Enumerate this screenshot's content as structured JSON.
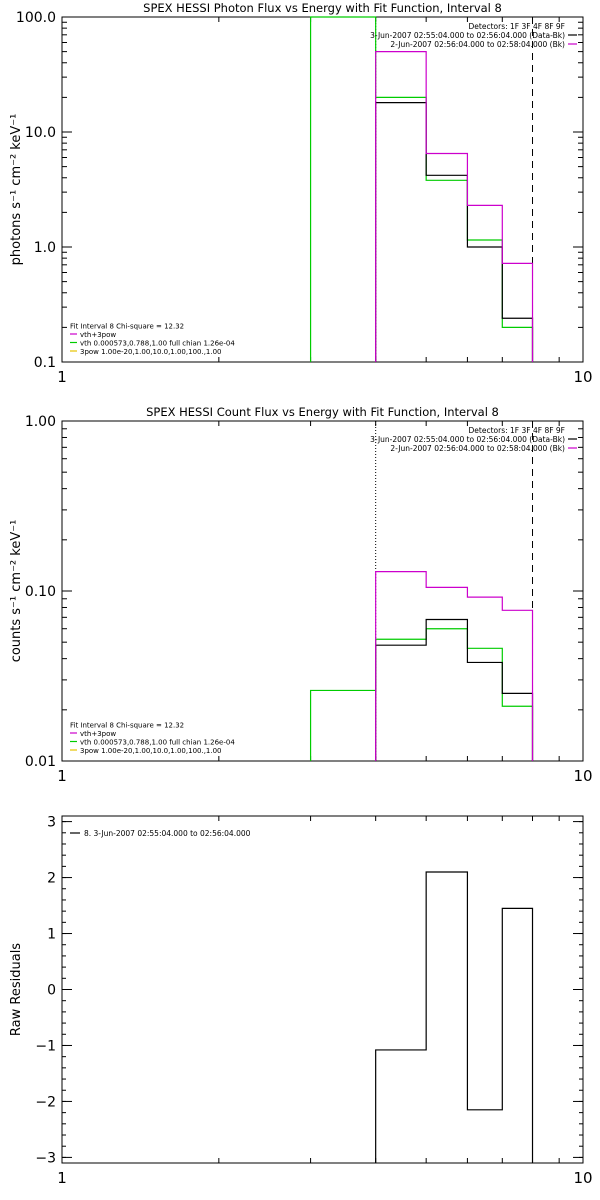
{
  "chart_data": [
    {
      "id": "photon",
      "type": "step",
      "title": "SPEX HESSI Photon Flux vs Energy with Fit Function, Interval 8",
      "xlabel": "",
      "ylabel": "photons s⁻¹ cm⁻² keV⁻¹",
      "xscale": "log",
      "yscale": "log",
      "xlim": [
        1,
        10
      ],
      "ylim": [
        0.1,
        100
      ],
      "xticks": [
        {
          "v": 1,
          "label": "1"
        },
        {
          "v": 10,
          "label": "10"
        }
      ],
      "yticks": [
        {
          "v": 0.1,
          "label": "0.1"
        },
        {
          "v": 1,
          "label": "1.0"
        },
        {
          "v": 10,
          "label": "10.0"
        },
        {
          "v": 100,
          "label": "100.0"
        }
      ],
      "vlines": [
        {
          "x": 4.0,
          "style": "dotted"
        },
        {
          "x": 8.0,
          "style": "dashed"
        }
      ],
      "series": [
        {
          "color": "#00cc00",
          "edges": [
            3,
            4,
            5,
            6,
            7,
            8
          ],
          "values": [
            100,
            20,
            3.8,
            1.15,
            0.2
          ]
        },
        {
          "color": "#000000",
          "edges": [
            4,
            5,
            6,
            7,
            8
          ],
          "values": [
            18,
            4.2,
            1.0,
            0.24
          ]
        },
        {
          "color": "#cc00cc",
          "edges": [
            4,
            5,
            6,
            7,
            8
          ],
          "values": [
            50,
            6.5,
            2.3,
            0.72
          ]
        }
      ],
      "legend_tr": [
        {
          "text": "Detectors: 1F 3F 4F 8F 9F",
          "color": ""
        },
        {
          "text": "3-Jun-2007 02:55:04.000 to 02:56:04.000 (Data-Bk)",
          "color": "#000000"
        },
        {
          "text": "2-Jun-2007 02:56:04.000 to 02:58:04.000 (Bk)",
          "color": "#cc00cc"
        }
      ],
      "legend_bl": [
        {
          "text": "Fit Interval 8   Chi-square = 12.32",
          "color": ""
        },
        {
          "text": "vth+3pow",
          "color": "#cc00cc"
        },
        {
          "text": "vth 0.000573,0.788,1.00  full chian 1.26e-04",
          "color": "#00cc00"
        },
        {
          "text": "3pow 1.00e-20,1.00,10.0,1.00,100.,1.00",
          "color": "#e6c300"
        }
      ]
    },
    {
      "id": "count",
      "type": "step",
      "title": "SPEX HESSI Count Flux vs Energy with Fit Function, Interval 8",
      "xlabel": "",
      "ylabel": "counts s⁻¹ cm⁻² keV⁻¹",
      "xscale": "log",
      "yscale": "log",
      "xlim": [
        1,
        10
      ],
      "ylim": [
        0.01,
        1
      ],
      "xticks": [
        {
          "v": 1,
          "label": "1"
        },
        {
          "v": 10,
          "label": "10"
        }
      ],
      "yticks": [
        {
          "v": 0.01,
          "label": "0.01"
        },
        {
          "v": 0.1,
          "label": "0.10"
        },
        {
          "v": 1,
          "label": "1.00"
        }
      ],
      "vlines": [
        {
          "x": 4.0,
          "style": "dotted"
        },
        {
          "x": 8.0,
          "style": "dashed"
        }
      ],
      "series": [
        {
          "color": "#00cc00",
          "edges": [
            3,
            4,
            5,
            6,
            7,
            8
          ],
          "values": [
            0.026,
            0.052,
            0.06,
            0.046,
            0.021
          ]
        },
        {
          "color": "#000000",
          "edges": [
            4,
            5,
            6,
            7,
            8
          ],
          "values": [
            0.048,
            0.068,
            0.038,
            0.025
          ]
        },
        {
          "color": "#cc00cc",
          "edges": [
            4,
            5,
            6,
            7,
            8
          ],
          "values": [
            0.13,
            0.105,
            0.092,
            0.077
          ]
        }
      ],
      "legend_tr": [
        {
          "text": "Detectors: 1F 3F 4F 8F 9F",
          "color": ""
        },
        {
          "text": "3-Jun-2007 02:55:04.000 to 02:56:04.000 (Data-Bk)",
          "color": "#000000"
        },
        {
          "text": "2-Jun-2007 02:56:04.000 to 02:58:04.000 (Bk)",
          "color": "#cc00cc"
        }
      ],
      "legend_bl": [
        {
          "text": "Fit Interval 8   Chi-square = 12.32",
          "color": ""
        },
        {
          "text": "vth+3pow",
          "color": "#cc00cc"
        },
        {
          "text": "vth 0.000573,0.788,1.00  full chian 1.26e-04",
          "color": "#00cc00"
        },
        {
          "text": "3pow 1.00e-20,1.00,10.0,1.00,100.,1.00",
          "color": "#e6c300"
        }
      ]
    },
    {
      "id": "resid",
      "type": "step",
      "title": "",
      "xlabel": "",
      "ylabel": "Raw Residuals",
      "xscale": "log",
      "yscale": "linear",
      "xlim": [
        1,
        10
      ],
      "ylim": [
        -3.1,
        3.1
      ],
      "xticks": [
        {
          "v": 1,
          "label": "1"
        },
        {
          "v": 10,
          "label": "10"
        }
      ],
      "yticks": [
        {
          "v": -3,
          "label": "−3"
        },
        {
          "v": -2,
          "label": "−2"
        },
        {
          "v": -1,
          "label": "−1"
        },
        {
          "v": 0,
          "label": "0"
        },
        {
          "v": 1,
          "label": "1"
        },
        {
          "v": 2,
          "label": "2"
        },
        {
          "v": 3,
          "label": "3"
        }
      ],
      "vlines": [],
      "series": [
        {
          "color": "#000000",
          "edges": [
            4,
            5,
            6,
            7,
            8
          ],
          "values": [
            -1.08,
            2.1,
            -2.15,
            1.45
          ],
          "baseline": -3.1
        }
      ],
      "legend_tr": [],
      "legend_tl": [
        {
          "text": "8. 3-Jun-2007 02:55:04.000 to 02:56:04.000",
          "color": "#000000"
        }
      ],
      "legend_bl": []
    }
  ]
}
